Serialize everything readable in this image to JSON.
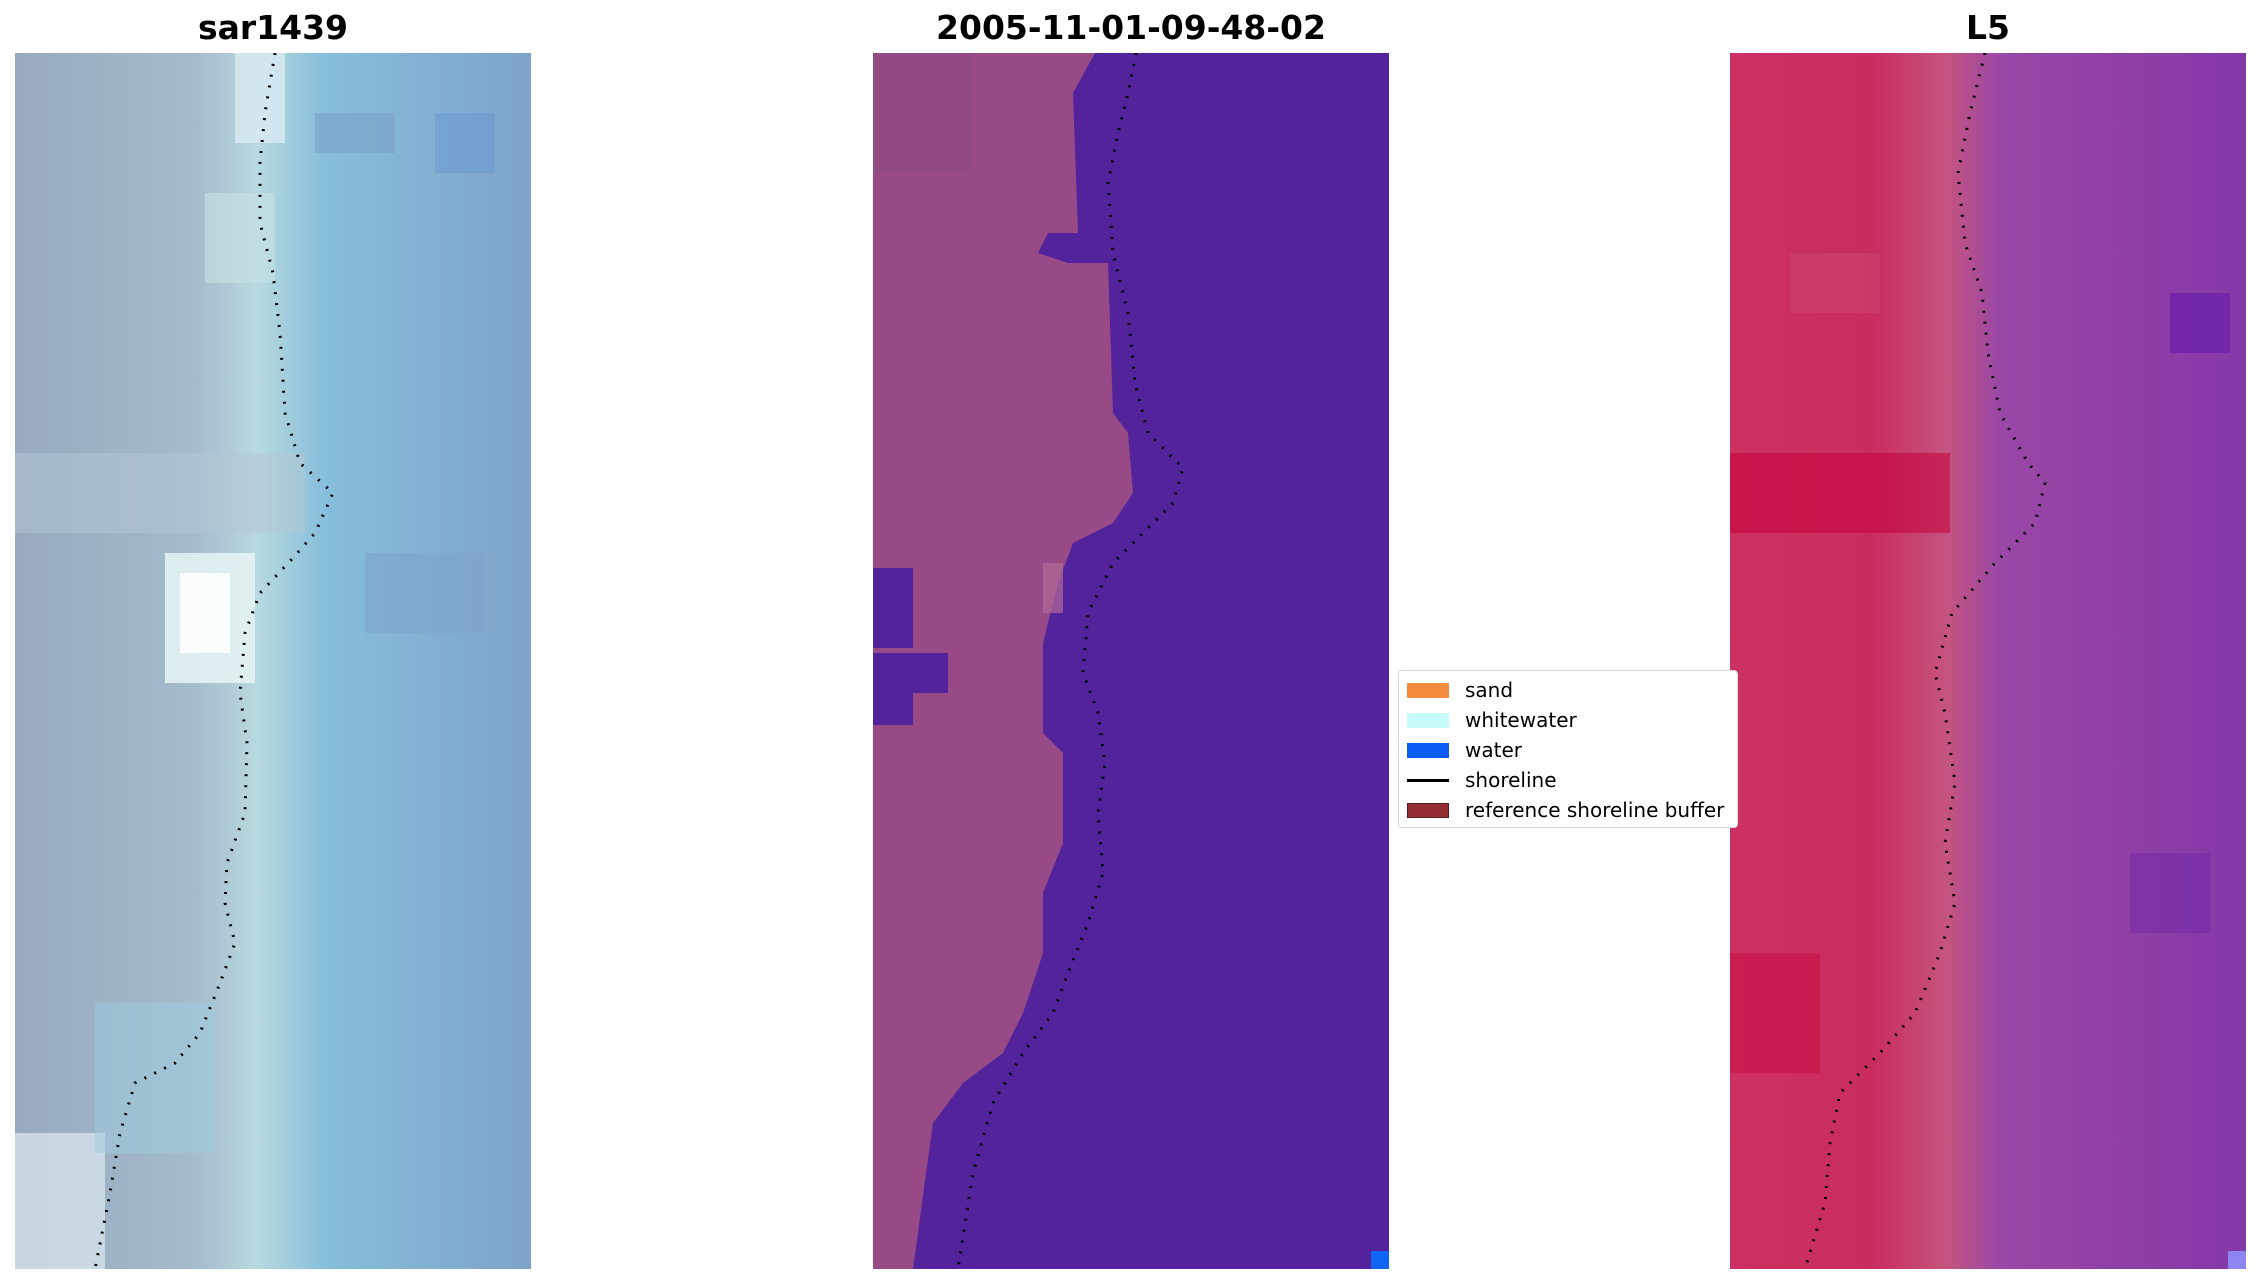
{
  "panels": {
    "left_title": "sar1439",
    "middle_title": "2005-11-01-09-48-02",
    "right_title": "L5"
  },
  "legend": {
    "items": [
      {
        "label": "sand",
        "color": "#f58b3c",
        "kind": "patch"
      },
      {
        "label": "whitewater",
        "color": "#c8fcfa",
        "kind": "patch"
      },
      {
        "label": "water",
        "color": "#0b5cf5",
        "kind": "patch"
      },
      {
        "label": "shoreline",
        "color": "#000000",
        "kind": "line"
      },
      {
        "label": "reference shoreline buffer",
        "color": "#952e34",
        "kind": "patch"
      }
    ]
  },
  "colors": {
    "rgb_base": "#93acc8",
    "classified_land": "#9b4b86",
    "classified_water": "#52239a",
    "classified_corner": "#1064f5",
    "ndwi_land": "#c9305e",
    "ndwi_water": "#8a3ba8",
    "ndwi_corner": "#8d86f0"
  },
  "icons": {
    "legend_line": "shoreline-line-icon"
  }
}
